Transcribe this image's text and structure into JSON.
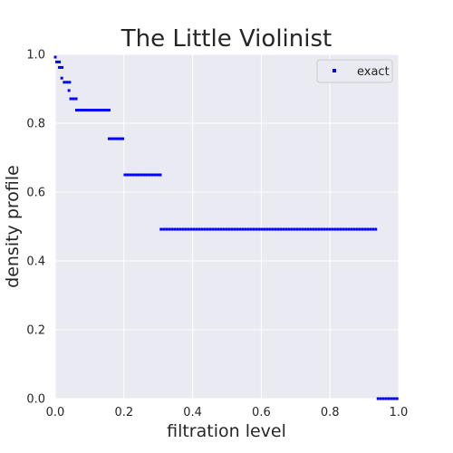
{
  "chart_data": {
    "type": "scatter",
    "title": "The Little Violinist",
    "xlabel": "filtration level",
    "ylabel": "density profile",
    "xlim": [
      0,
      1
    ],
    "ylim": [
      0,
      1
    ],
    "x_ticks": [
      "0.0",
      "0.2",
      "0.4",
      "0.6",
      "0.8",
      "1.0"
    ],
    "y_ticks": [
      "0.0",
      "0.2",
      "0.4",
      "0.6",
      "0.8",
      "1.0"
    ],
    "grid": true,
    "legend_position": "top-right",
    "background_color": "#eaeaf2",
    "grid_color": "#ffffff",
    "marker_color": "#0000ff",
    "series": [
      {
        "name": "exact",
        "segments": [
          {
            "x_start": 0.0,
            "x_end": 0.004,
            "y": 0.992
          },
          {
            "x_start": 0.004,
            "x_end": 0.012,
            "y": 0.978
          },
          {
            "x_start": 0.012,
            "x_end": 0.022,
            "y": 0.962
          },
          {
            "x_start": 0.019,
            "x_end": 0.026,
            "y": 0.931
          },
          {
            "x_start": 0.026,
            "x_end": 0.045,
            "y": 0.919
          },
          {
            "x_start": 0.04,
            "x_end": 0.046,
            "y": 0.895
          },
          {
            "x_start": 0.045,
            "x_end": 0.062,
            "y": 0.871
          },
          {
            "x_start": 0.062,
            "x_end": 0.158,
            "y": 0.838
          },
          {
            "x_start": 0.157,
            "x_end": 0.203,
            "y": 0.755
          },
          {
            "x_start": 0.203,
            "x_end": 0.308,
            "y": 0.65
          },
          {
            "x_start": 0.308,
            "x_end": 0.94,
            "y": 0.492
          },
          {
            "x_start": 0.94,
            "x_end": 1.0,
            "y": 0.0
          }
        ]
      }
    ]
  }
}
